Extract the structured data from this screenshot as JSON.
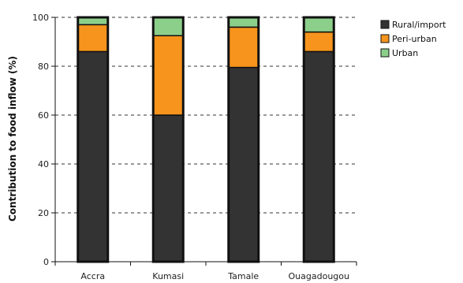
{
  "chart_data": {
    "type": "bar",
    "stacked": true,
    "categories": [
      "Accra",
      "Kumasi",
      "Tamale",
      "Ouagadougou"
    ],
    "series": [
      {
        "name": "Rural/import",
        "values": [
          86,
          60,
          79.5,
          86
        ],
        "color": "#333333"
      },
      {
        "name": "Peri-urban",
        "values": [
          11,
          32.5,
          16.5,
          8
        ],
        "color": "#f7941d"
      },
      {
        "name": "Urban",
        "values": [
          3,
          7.5,
          4,
          6
        ],
        "color": "#8ccf8a"
      }
    ],
    "title": "",
    "xlabel": "",
    "ylabel": "Contribution to food inflow (%)",
    "ylim": [
      0,
      100
    ],
    "yticks": [
      0,
      20,
      40,
      60,
      80,
      100
    ],
    "grid": "dashed horizontal",
    "legend": "top-right"
  }
}
